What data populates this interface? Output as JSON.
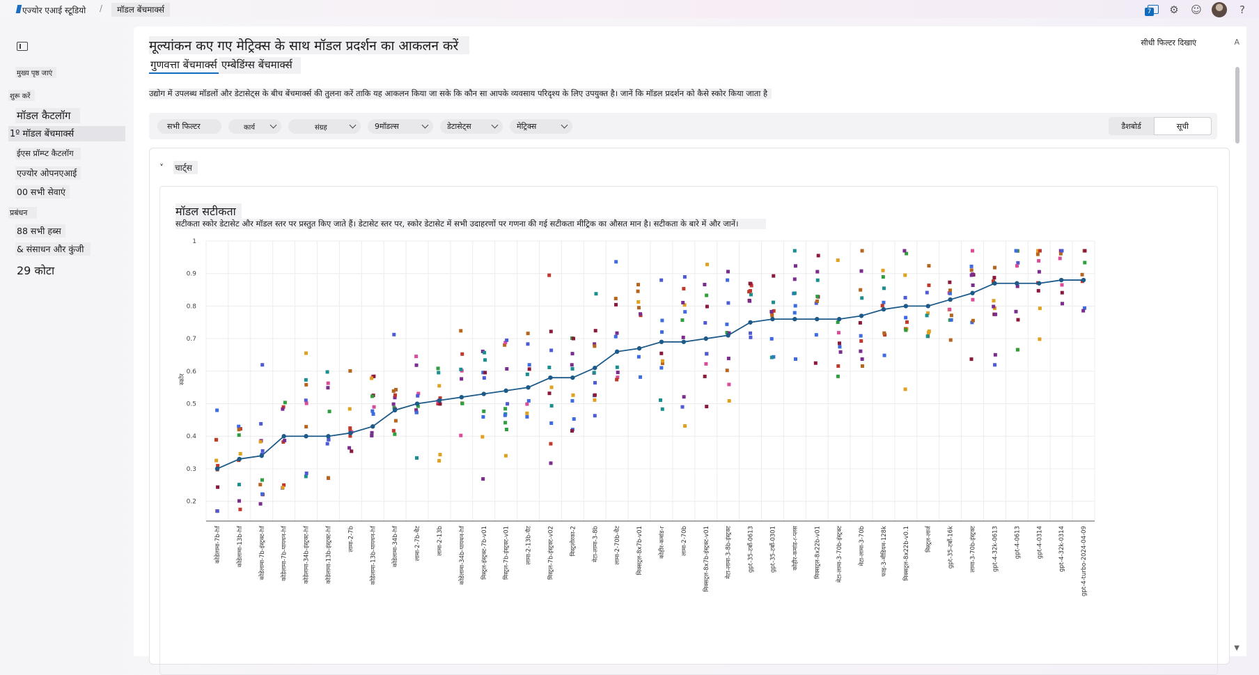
{
  "topbar": {
    "brand": "एज्योर एआई स्टूडियो",
    "separator": "/",
    "breadcrumb": "मॉडल बेंचमार्क्स",
    "notification_count": "7"
  },
  "sidebar": {
    "home": "मुख्य पृष्ठ जाएं",
    "section_start": "शुरू करें",
    "model_catalog": "मॉडल कैटलॉग",
    "model_benchmarks": "1º मॉडल बेंचमार्क्स",
    "prompt_catalog": "ईएस प्रॉम्प्ट कैटलॉग",
    "azure_openai": "एज्योर ओपनएआई",
    "all_services": "00 सभी सेवाएं",
    "section_manage": "प्रबंधन",
    "all_hubs": "88 सभी हब्स",
    "resources_keys": "& संसाधन और कुंजी",
    "quota": "29 कोटा"
  },
  "main": {
    "title": "मूल्यांकन कए गए मेट्रिक्स के साथ मॉडल प्रदर्शन का आकलन करें",
    "tabs": [
      "गुणवत्ता बेंचमार्क्स",
      "एम्बेडिंग्स बेंचमार्क्स"
    ],
    "show_filters": "सीधी फिल्टर दिखाएं",
    "description": "उद्योग में उपलब्ध मॉडलों और डेटासेट्स के बीच बेंचमार्क्स की तुलना करें ताकि यह आकलन किया जा सके कि कौन सा आपके व्यवसाय परिदृश्य के लिए उपयुक्त है। जानें कि मॉडल प्रदर्शन को कैसे स्कोर किया जाता है"
  },
  "filters": {
    "all_filters": "सभी फिल्टर",
    "task": "कार्य",
    "collection": "संग्रह",
    "models": "9मॉडल्स",
    "datasets": "डेटासेट्स",
    "metrics": "मेट्रिक्स",
    "view_dashboard": "डैशबोर्ड",
    "view_list": "सूची"
  },
  "charts_section": {
    "toggle": "˅",
    "label": "चार्ट्स"
  },
  "chart_data": {
    "type": "line",
    "title": "मॉडल सटीकता",
    "subtitle": "सटीकता स्कोर डेटासेट और मॉडल स्तर पर प्रस्तुत किए जाते हैं। डेटासेट स्तर पर, स्कोर डेटासेट में सभी उदाहरणों पर गणना की गई सटीकता मीट्रिक का औसत मान है। सटीकता के बारे में और जानें।",
    "ylabel": "स्कोर",
    "yticks": [
      "1",
      "0.9",
      "0.8",
      "0.7",
      "0.6",
      "0.5",
      "0.4",
      "0.3",
      "0.2"
    ],
    "ylim": [
      0.15,
      1.0
    ],
    "grid": true,
    "categories": [
      "कोडेलामा-7b-hf",
      "कोडेलामा-13b-hf",
      "कोडेलामा-7b-इंस्ट्रक्ट-hf",
      "कोडेलामा-7b-पायथन-hf",
      "कोडेलामा-34b-इंस्ट्रक्ट-hf",
      "कोडेलामा-13b-इंस्ट्रक्ट-hf",
      "लामा-2-7b",
      "कोडेलामा-13b-पायथन-hf",
      "कोडेलामा-34b-hf",
      "लामा-2-7b-चैट",
      "लामा-2-13b",
      "कोडेलामा-34b-पायथन-hf",
      "मिस्ट्रल-इंस्ट्रक्ट-7b-v01",
      "मिस्ट्रल-7b-इंस्ट्रक्ट-v01",
      "लामा-2-13b-चैट",
      "मिस्ट्रल-7b-इंस्ट्रक्ट-v02",
      "मिस्ट्रलोरका-2",
      "मेटा-लामा-3-8b",
      "लामा-2-70b-चैट",
      "मिक्सट्रल-8x7b-v01",
      "कोहीर-कमांड-r",
      "लामा-2-70b",
      "मिक्सट्रल-8x7b-इंस्ट्रक्ट-v01",
      "मेटा-लामा-3-8b-इंस्ट्रक्ट",
      "gpt-35-टर्बो-0613",
      "gpt-35-टर्बो-0301",
      "कोहीर-कमांड-r-प्लस",
      "मिक्सट्रल-8x22b-v01",
      "मेटा-लामा-3-70b-इंस्ट्रक्ट",
      "मेटा-लामा-3-70b",
      "फाइ-3-मीडियम-128k",
      "मिक्सट्रल-8x22b-v0.1",
      "मिस्ट्रल-लार्ज",
      "gpt-35-टर्बो-16k",
      "लामा-3-70b-इंस्ट्रक्ट",
      "gpt-4-32k-0613",
      "gpt-4-0613",
      "gpt-4-0314",
      "gpt-4-32k-0314",
      "gpt-4-turbo-2024-04-09"
    ],
    "series": [
      {
        "values": [
          0.3,
          0.33,
          0.34,
          0.4,
          0.4,
          0.4,
          0.41,
          0.43,
          0.48,
          0.5,
          0.51,
          0.52,
          0.53,
          0.54,
          0.55,
          0.58,
          0.58,
          0.61,
          0.66,
          0.67,
          0.69,
          0.69,
          0.7,
          0.71,
          0.75,
          0.76,
          0.76,
          0.76,
          0.76,
          0.77,
          0.79,
          0.8,
          0.8,
          0.82,
          0.84,
          0.87,
          0.87,
          0.87,
          0.88,
          0.88
        ]
      }
    ],
    "dataset_colors": [
      "#7b2d8e",
      "#3e6be0",
      "#c0392b",
      "#2e9e3e",
      "#e0a020",
      "#d84c9a",
      "#1a8f8f",
      "#8b1a3a",
      "#4f5bd5",
      "#b5651d"
    ]
  }
}
